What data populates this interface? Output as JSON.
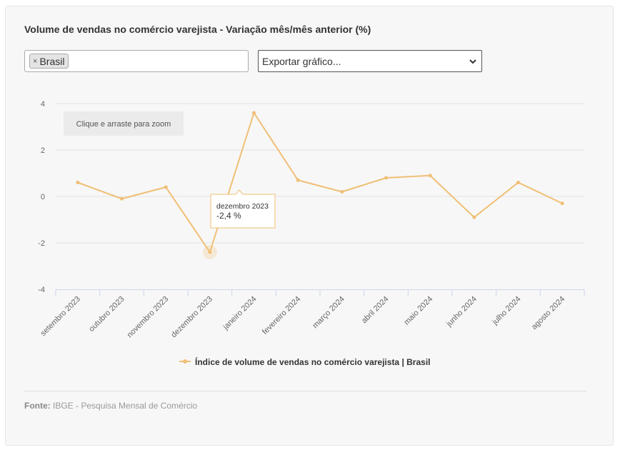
{
  "title": "Volume de vendas no comércio varejista - Variação mês/mês anterior (%)",
  "filter": {
    "tag_label": "Brasil",
    "remove_icon": "×"
  },
  "export": {
    "placeholder": "Exportar gráfico..."
  },
  "zoom_hint": "Clique e arraste para zoom",
  "tooltip": {
    "label": "dezembro 2023",
    "value": "-2,4 %"
  },
  "legend": {
    "label": "Índice de volume de vendas no comércio varejista | Brasil"
  },
  "source": {
    "label": "Fonte:",
    "text": "IBGE - Pesquisa Mensal de Comércio"
  },
  "colors": {
    "series": "#f0bf75",
    "grid": "#e3e3e3",
    "axis": "#ccd6eb"
  },
  "chart_data": {
    "type": "line",
    "title": "Volume de vendas no comércio varejista - Variação mês/mês anterior (%)",
    "categories": [
      "setembro 2023",
      "outubro 2023",
      "novembro 2023",
      "dezembro 2023",
      "janeiro 2024",
      "fevereiro 2024",
      "março 2024",
      "abril 2024",
      "maio 2024",
      "junho 2024",
      "julho 2024",
      "agosto 2024"
    ],
    "series": [
      {
        "name": "Índice de volume de vendas no comércio varejista | Brasil",
        "values": [
          0.6,
          -0.1,
          0.4,
          -2.4,
          3.6,
          0.7,
          0.2,
          0.8,
          0.9,
          -0.9,
          0.6,
          -0.3
        ]
      }
    ],
    "ylim": [
      -4,
      4
    ],
    "yticks": [
      "4",
      "2",
      "0",
      "-2",
      "-4"
    ],
    "ytick_values": [
      4,
      2,
      0,
      -2,
      -4
    ],
    "grid": true,
    "legend_position": "bottom",
    "highlighted_index": 3
  }
}
